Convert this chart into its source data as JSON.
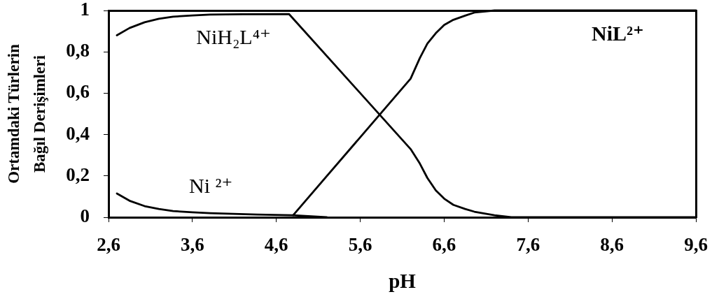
{
  "chart_data": {
    "type": "line",
    "xlabel": "pH",
    "ylabel": "Ortamdaki Türlerin\nBağıl Derişimleri",
    "xlim": [
      2.6,
      9.6
    ],
    "xticks": [
      {
        "value": 2.6,
        "label": "2,6"
      },
      {
        "value": 3.6,
        "label": "3,6"
      },
      {
        "value": 4.6,
        "label": "4,6"
      },
      {
        "value": 5.6,
        "label": "5,6"
      },
      {
        "value": 6.6,
        "label": "6,6"
      },
      {
        "value": 7.6,
        "label": "7,6"
      },
      {
        "value": 8.6,
        "label": "8,6"
      },
      {
        "value": 9.6,
        "label": "9,6"
      }
    ],
    "ylim": [
      0,
      1
    ],
    "yticks": [
      0,
      {
        "value": 0.2,
        "label": "0,2"
      },
      {
        "value": 0.4,
        "label": "0,4"
      },
      {
        "value": 0.6,
        "label": "0,6"
      },
      {
        "value": 0.8,
        "label": "0,8"
      },
      1
    ],
    "series": [
      {
        "name": "NiH₂L⁴⁺",
        "color": "#000000",
        "x": [
          2.7,
          2.85,
          3.03,
          3.2,
          3.37,
          3.6,
          3.81,
          4.2,
          4.75,
          6.2,
          6.31,
          6.4,
          6.5,
          6.6,
          6.71,
          6.85,
          6.96,
          7.2,
          7.4,
          9.6
        ],
        "values": [
          0.88,
          0.915,
          0.943,
          0.96,
          0.97,
          0.976,
          0.98,
          0.982,
          0.983,
          0.33,
          0.26,
          0.19,
          0.13,
          0.09,
          0.06,
          0.04,
          0.027,
          0.01,
          0.0,
          0.0
        ]
      },
      {
        "name": "Ni ²⁺",
        "color": "#000000",
        "x": [
          2.7,
          2.85,
          3.03,
          3.2,
          3.37,
          3.6,
          3.81,
          4.37,
          4.8,
          5.2
        ],
        "values": [
          0.115,
          0.08,
          0.054,
          0.04,
          0.03,
          0.024,
          0.02,
          0.013,
          0.01,
          0.0
        ]
      },
      {
        "name": "NiL²⁺",
        "color": "#000000",
        "x": [
          4.8,
          6.2,
          6.31,
          6.4,
          6.5,
          6.6,
          6.71,
          6.85,
          6.96,
          7.2,
          7.4,
          9.6
        ],
        "values": [
          0.01,
          0.67,
          0.77,
          0.84,
          0.89,
          0.93,
          0.955,
          0.975,
          0.99,
          1.0,
          1.0,
          1.0
        ]
      }
    ],
    "legend": false,
    "marker": "none",
    "line_style": "solid"
  }
}
